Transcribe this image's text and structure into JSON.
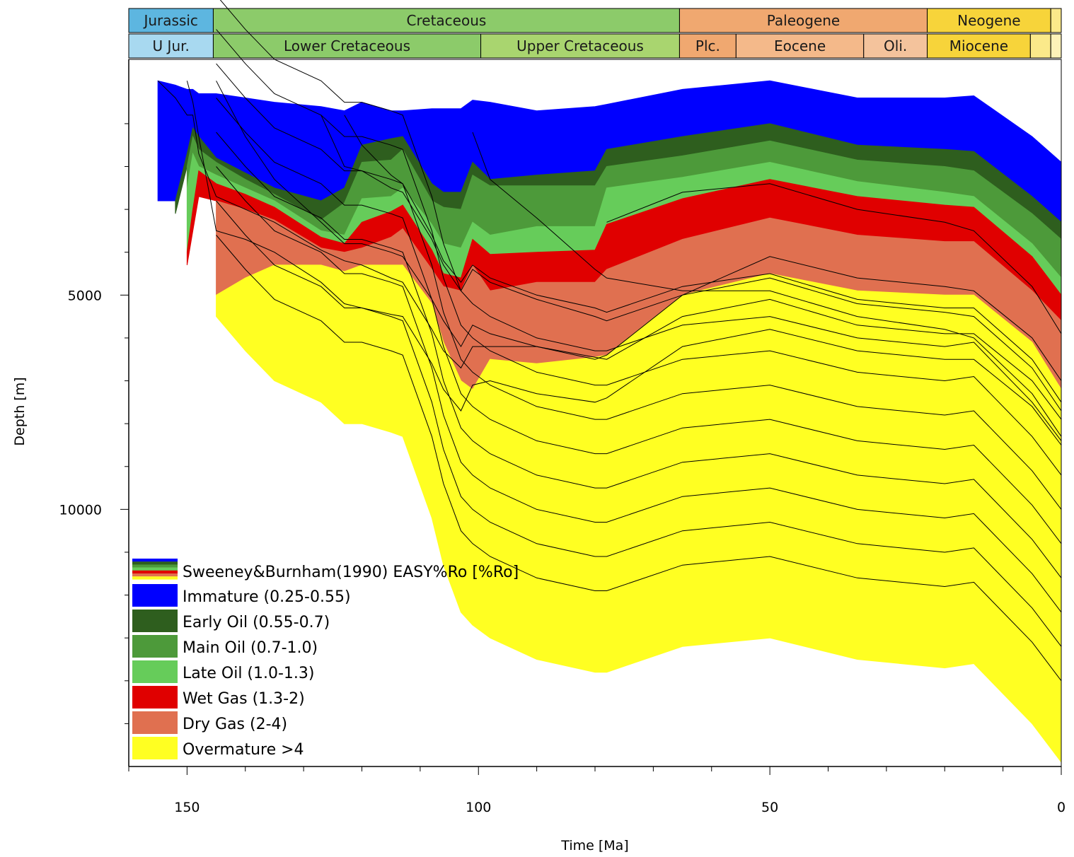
{
  "chart_data": {
    "type": "area",
    "xlabel": "Time [Ma]",
    "ylabel": "Depth [m]",
    "xlim": [
      160,
      0
    ],
    "ylim": [
      16000,
      -500
    ],
    "x_ticks": [
      150,
      100,
      50,
      0
    ],
    "y_ticks": [
      5000,
      10000
    ],
    "grid": false,
    "legend_position": "bottom-left",
    "legend_title": "Sweeney&Burnham(1990)  EASY%Ro [%Ro]",
    "periods": [
      {
        "name": "Jurassic",
        "start": 160,
        "end": 145.5,
        "color": "#5db6e0"
      },
      {
        "name": "Cretaceous",
        "start": 145.5,
        "end": 65.5,
        "color": "#8ccb6a"
      },
      {
        "name": "Paleogene",
        "start": 65.5,
        "end": 23,
        "color": "#f0a870"
      },
      {
        "name": "Neogene",
        "start": 23,
        "end": 1.8,
        "color": "#f7d43a"
      },
      {
        "name": "",
        "start": 1.8,
        "end": 0,
        "color": "#fbe98a"
      }
    ],
    "epochs": [
      {
        "name": "U Jur.",
        "start": 160,
        "end": 145.5,
        "color": "#a8d9f0"
      },
      {
        "name": "Lower Cretaceous",
        "start": 145.5,
        "end": 99.6,
        "color": "#8ccb6a"
      },
      {
        "name": "Upper Cretaceous",
        "start": 99.6,
        "end": 65.5,
        "color": "#a9d56f"
      },
      {
        "name": "Plc.",
        "start": 65.5,
        "end": 55.8,
        "color": "#f0a870"
      },
      {
        "name": "Eocene",
        "start": 55.8,
        "end": 33.9,
        "color": "#f4b98a"
      },
      {
        "name": "Oli.",
        "start": 33.9,
        "end": 23,
        "color": "#f4c39c"
      },
      {
        "name": "Miocene",
        "start": 23,
        "end": 5.3,
        "color": "#f7d43a"
      },
      {
        "name": "",
        "start": 5.3,
        "end": 1.8,
        "color": "#fbe98a"
      },
      {
        "name": "",
        "start": 1.8,
        "end": 0,
        "color": "#fdf2b8"
      }
    ],
    "x": [
      160,
      155,
      152,
      150,
      149,
      148,
      145,
      140,
      135,
      127,
      123,
      120,
      115,
      113,
      108,
      106,
      103,
      101,
      98,
      90,
      80,
      78,
      65,
      50,
      35,
      20,
      15,
      5,
      0
    ],
    "boundaries": [
      {
        "name": "surface",
        "values": [
          0,
          0,
          100,
          200,
          200,
          300,
          300,
          400,
          500,
          600,
          700,
          500,
          700,
          700,
          650,
          650,
          650,
          450,
          500,
          700,
          600,
          550,
          200,
          0,
          400,
          400,
          350,
          1300,
          1900
        ]
      },
      {
        "name": "top_early_oil",
        "values": [
          null,
          2800,
          2800,
          1700,
          1100,
          1300,
          1800,
          2150,
          2500,
          2800,
          2500,
          1500,
          1350,
          1300,
          2400,
          2600,
          2600,
          1900,
          2300,
          2200,
          2100,
          1600,
          1300,
          1000,
          1500,
          1600,
          1650,
          2700,
          3300
        ]
      },
      {
        "name": "top_main_oil",
        "values": [
          null,
          null,
          3100,
          2000,
          1300,
          1600,
          1900,
          2300,
          2650,
          3250,
          2850,
          1900,
          1850,
          1600,
          2800,
          2950,
          3000,
          2200,
          2450,
          2450,
          2450,
          2000,
          1750,
          1400,
          1850,
          2000,
          2100,
          3100,
          3700
        ]
      },
      {
        "name": "top_late_oil",
        "values": [
          null,
          null,
          null,
          2500,
          1700,
          2000,
          2200,
          2500,
          2800,
          3500,
          3600,
          2750,
          2700,
          2500,
          3350,
          3800,
          3900,
          3300,
          3600,
          3400,
          3400,
          2500,
          2250,
          1900,
          2350,
          2600,
          2700,
          3800,
          4600
        ]
      },
      {
        "name": "top_wet_gas",
        "values": [
          null,
          null,
          null,
          4000,
          3000,
          2100,
          2400,
          2650,
          2950,
          3650,
          3800,
          3300,
          3050,
          2900,
          3950,
          4500,
          4600,
          3700,
          4050,
          4000,
          3950,
          3350,
          2750,
          2300,
          2700,
          2900,
          2950,
          4100,
          5000
        ]
      },
      {
        "name": "top_dry_gas",
        "values": [
          null,
          null,
          null,
          4300,
          3500,
          2700,
          2800,
          3000,
          3250,
          3900,
          4000,
          3900,
          3650,
          3450,
          4400,
          4800,
          4900,
          4300,
          4900,
          4700,
          4700,
          4400,
          3700,
          3200,
          3600,
          3750,
          3750,
          4900,
          5600
        ]
      },
      {
        "name": "top_overmature",
        "values": [
          null,
          null,
          null,
          null,
          null,
          null,
          5000,
          4600,
          4300,
          4300,
          4450,
          4300,
          4300,
          4300,
          5200,
          6100,
          7000,
          7200,
          6500,
          6600,
          6450,
          6400,
          5000,
          4500,
          4900,
          5000,
          5000,
          6100,
          7200
        ]
      },
      {
        "name": "basement",
        "values": [
          0,
          1300,
          2100,
          2900,
          3200,
          3600,
          5500,
          6300,
          7000,
          7500,
          8000,
          8000,
          8200,
          8300,
          10200,
          11300,
          12400,
          12700,
          13000,
          13500,
          13800,
          13800,
          13200,
          13000,
          13500,
          13700,
          13600,
          15000,
          15900
        ]
      }
    ],
    "horizons": [
      {
        "start": 155,
        "values": [
          null,
          0,
          400,
          800,
          800,
          1700,
          2700,
          3000,
          3300,
          3950,
          4200,
          4300,
          4600,
          4700,
          5800,
          6300,
          6700,
          6200,
          6200,
          6200,
          6500,
          6400,
          5000,
          4100,
          4600,
          4800,
          4900,
          6000,
          7000
        ]
      },
      {
        "start": 150,
        "values": [
          null,
          null,
          null,
          0,
          500,
          1300,
          3500,
          3700,
          4000,
          4700,
          5200,
          5300,
          5450,
          5500,
          6600,
          7200,
          7700,
          7100,
          7000,
          7300,
          7500,
          7400,
          6200,
          5800,
          6300,
          6500,
          6500,
          7600,
          8500
        ]
      },
      {
        "start": 145,
        "values": [
          null,
          null,
          null,
          null,
          null,
          null,
          0,
          1300,
          2300,
          3300,
          3800,
          3800,
          4000,
          4100,
          5100,
          5600,
          6200,
          5700,
          5900,
          6200,
          6450,
          6500,
          5500,
          5100,
          5700,
          5900,
          5900,
          7000,
          7900
        ]
      },
      {
        "start": 130,
        "values": [
          null,
          null,
          null,
          null,
          null,
          null,
          null,
          null,
          null,
          800,
          2000,
          2100,
          2500,
          2600,
          3700,
          4300,
          4900,
          4400,
          4700,
          5100,
          5500,
          5600,
          5000,
          4600,
          5200,
          5400,
          5500,
          6700,
          7700
        ]
      },
      {
        "start": 100,
        "values": [
          null,
          null,
          null,
          null,
          null,
          null,
          null,
          null,
          null,
          null,
          null,
          null,
          null,
          null,
          null,
          null,
          null,
          1200,
          2300,
          3200,
          4400,
          4600,
          4900,
          4900,
          5500,
          5800,
          6000,
          7300,
          8300
        ]
      },
      {
        "start": 70,
        "values": [
          null,
          null,
          null,
          null,
          null,
          null,
          null,
          null,
          null,
          null,
          null,
          null,
          null,
          null,
          null,
          null,
          null,
          null,
          null,
          null,
          null,
          3300,
          2600,
          2400,
          3000,
          3300,
          3500,
          4800,
          5900
        ]
      },
      {
        "start": 125,
        "values": [
          null,
          null,
          null,
          null,
          null,
          null,
          null,
          null,
          null,
          null,
          800,
          1500,
          2200,
          2400,
          3600,
          4200,
          4700,
          4300,
          4600,
          5000,
          5300,
          5400,
          4800,
          4500,
          5100,
          5300,
          5300,
          6500,
          7500
        ]
      }
    ],
    "deep_horizons": [
      {
        "values": [
          null,
          null,
          null,
          null,
          null,
          null,
          5500,
          6300,
          7000,
          7500,
          8000,
          8000,
          8200,
          8300,
          10200,
          11300,
          12400,
          12700,
          13000,
          13500,
          13800,
          13800,
          13200,
          13000,
          13500,
          13700,
          13600,
          15000,
          15900
        ]
      },
      {
        "offset": 1900
      },
      {
        "offset": 2700
      },
      {
        "offset": 3500
      },
      {
        "offset": 4300
      },
      {
        "offset": 5100
      },
      {
        "offset": 5900
      },
      {
        "offset": 6700
      },
      {
        "offset": 7500
      }
    ],
    "series": [
      {
        "name": "Immature (0.25-0.55)",
        "color": "#0000ff",
        "from": "surface",
        "to": "top_early_oil"
      },
      {
        "name": "Early Oil (0.55-0.7)",
        "color": "#2e5e1e",
        "from": "top_early_oil",
        "to": "top_main_oil"
      },
      {
        "name": "Main Oil (0.7-1.0)",
        "color": "#4d9a3a",
        "from": "top_main_oil",
        "to": "top_late_oil"
      },
      {
        "name": "Late Oil (1.0-1.3)",
        "color": "#66cc5a",
        "from": "top_late_oil",
        "to": "top_wet_gas"
      },
      {
        "name": "Wet Gas (1.3-2)",
        "color": "#e00000",
        "from": "top_wet_gas",
        "to": "top_dry_gas"
      },
      {
        "name": "Dry Gas (2-4)",
        "color": "#e07050",
        "from": "top_dry_gas",
        "to": "top_overmature"
      },
      {
        "name": "Overmature >4",
        "color": "#ffff22",
        "from": "top_overmature",
        "to": "basement"
      }
    ]
  }
}
